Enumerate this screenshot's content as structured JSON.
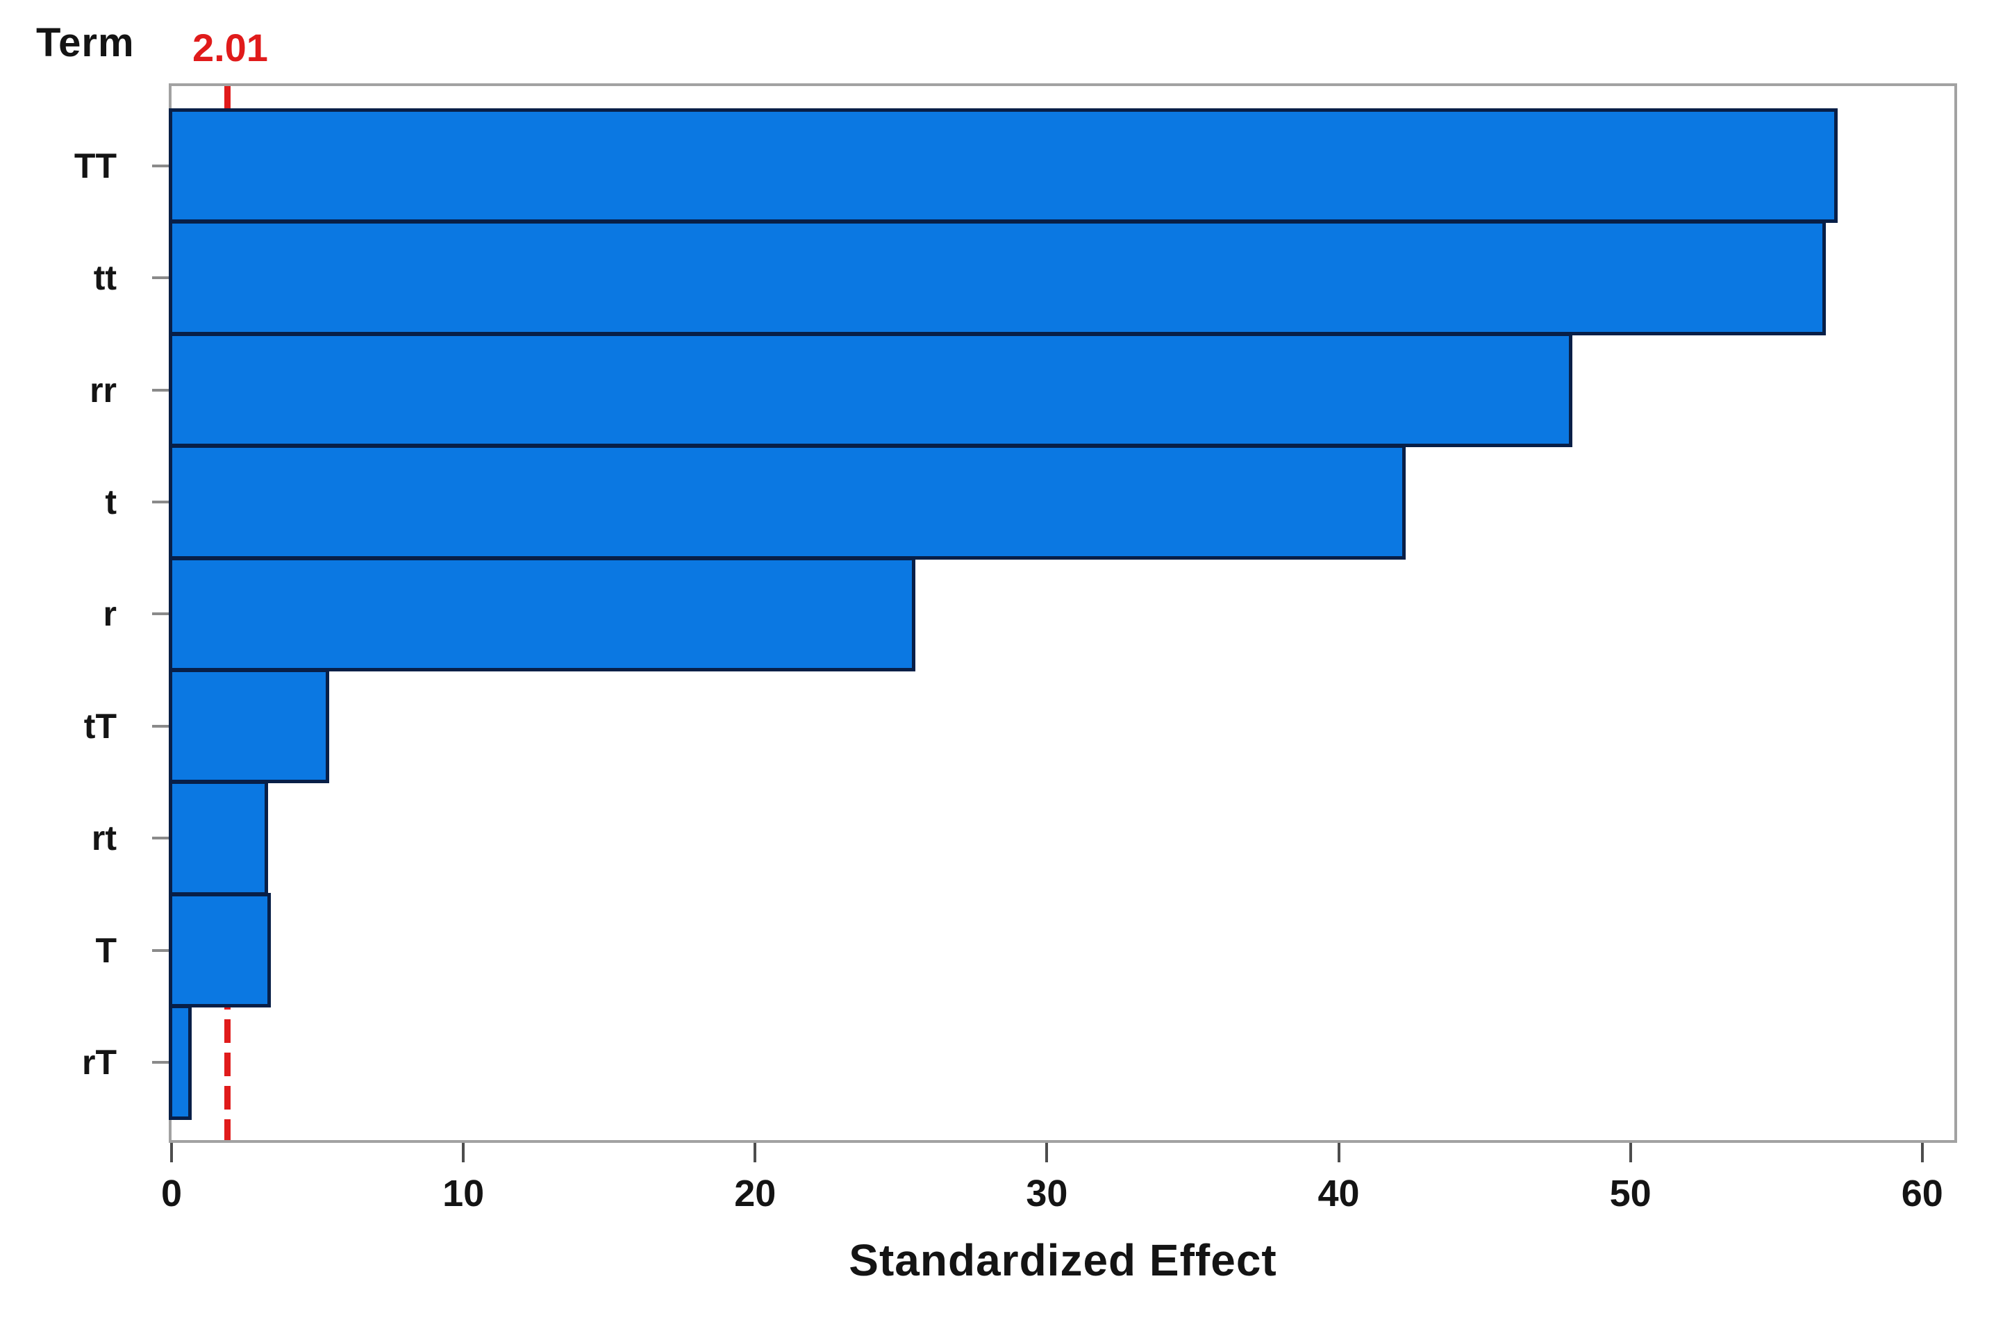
{
  "term_header": "Term",
  "xaxis_title": "Standardized Effect",
  "chart_data": {
    "type": "bar",
    "orientation": "horizontal",
    "categories": [
      "TT",
      "tt",
      "rr",
      "t",
      "r",
      "tT",
      "rt",
      "T",
      "rT"
    ],
    "values": [
      57.1,
      56.7,
      48.0,
      42.3,
      25.5,
      5.4,
      3.3,
      3.4,
      0.7
    ],
    "xlabel": "Standardized Effect",
    "ylabel": "Term",
    "x_ticks": [
      0,
      10,
      20,
      30,
      40,
      50,
      60
    ],
    "xlim": [
      0,
      61.1
    ],
    "reference_line": 2.01,
    "reference_line_label": "2.01",
    "grid": "off",
    "legend": "none",
    "colors": {
      "bar_fill": "#0b78e2",
      "bar_border": "#081f47",
      "reference_line": "#e01b1b",
      "frame": "#a2a2a2",
      "axis_tick": "#4d4d4d",
      "category_tick": "#8a8a8a",
      "text": "#141414"
    }
  }
}
